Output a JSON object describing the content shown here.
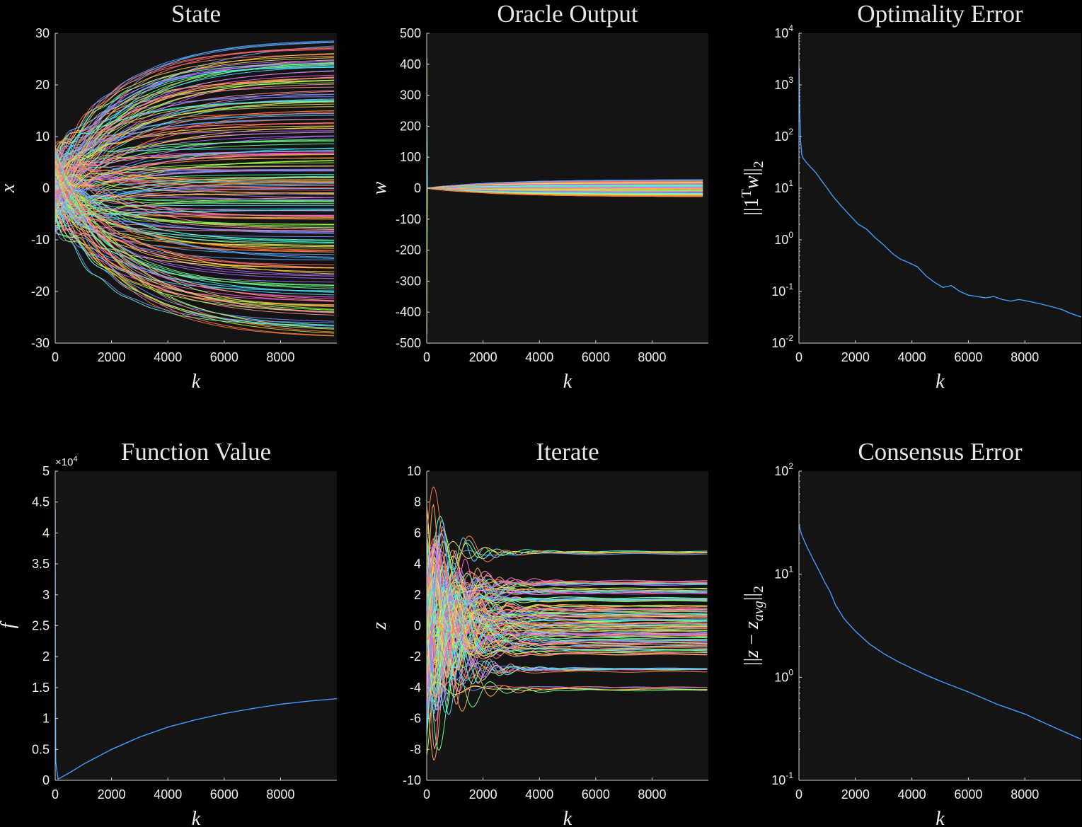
{
  "chart_data": [
    {
      "type": "line",
      "title": "State",
      "xlabel": "k",
      "ylabel": "x",
      "xlim": [
        0,
        9999
      ],
      "ylim": [
        -30,
        30
      ],
      "yscale": "linear",
      "xticks": [
        0,
        2000,
        4000,
        6000,
        8000
      ],
      "xtick_labels": [
        "0",
        "2000",
        "4000",
        "6000",
        "8000"
      ],
      "yticks": [
        -30,
        -20,
        -10,
        0,
        10,
        20,
        30
      ],
      "ytick_labels": [
        "-30",
        "-20",
        "-10",
        "0",
        "10",
        "20",
        "30"
      ],
      "grid": false,
      "description_of_series": "many agents (~200), each diverging from near 0 to a final value between about -28 and 28",
      "series_final_values": [
        28,
        26.5,
        25.5,
        24.5,
        24,
        23.2,
        22,
        21,
        20.3,
        19.5,
        18,
        17,
        16.2,
        15,
        14,
        12.8,
        11.5,
        10.5,
        9,
        7.8,
        7,
        6,
        5,
        4,
        3,
        2.5,
        1.8,
        1,
        0.5,
        -0.3,
        -1,
        -2,
        -3,
        -3.8,
        -5,
        -6,
        -7,
        -8.2,
        -9,
        -10.5,
        -11.5,
        -12.5,
        -13.5,
        -15,
        -16,
        -17.5,
        -19,
        -20,
        -21.5,
        -22.5,
        -23.5,
        -24.5,
        -26,
        -27,
        -27.5,
        -28
      ]
    },
    {
      "type": "line",
      "title": "Oracle Output",
      "xlabel": "k",
      "ylabel": "w",
      "xlim": [
        0,
        9999
      ],
      "ylim": [
        -500,
        500
      ],
      "yscale": "linear",
      "xticks": [
        0,
        2000,
        4000,
        6000,
        8000
      ],
      "xtick_labels": [
        "0",
        "2000",
        "4000",
        "6000",
        "8000"
      ],
      "yticks": [
        -500,
        -400,
        -300,
        -200,
        -100,
        0,
        100,
        200,
        300,
        400,
        500
      ],
      "ytick_labels": [
        "-500",
        "-400",
        "-300",
        "-200",
        "-100",
        "0",
        "100",
        "200",
        "300",
        "400",
        "500"
      ],
      "grid": false,
      "description_of_series": "initial spikes up to about ±420 at k=0, then all series settle in a narrow band around 0",
      "initial_spikes": [
        420,
        350,
        300,
        160,
        -90,
        -250,
        -470
      ],
      "series_final_values": [
        27,
        22,
        18,
        14,
        10,
        6,
        2,
        -2,
        -6,
        -10,
        -14,
        -18,
        -22,
        -26
      ]
    },
    {
      "type": "line",
      "title": "Optimality Error",
      "xlabel": "k",
      "ylabel": "||1^T w||_2",
      "xlim": [
        0,
        9999
      ],
      "ylim": [
        0.01,
        10000
      ],
      "yscale": "log",
      "xticks": [
        0,
        2000,
        4000,
        6000,
        8000
      ],
      "xtick_labels": [
        "0",
        "2000",
        "4000",
        "6000",
        "8000"
      ],
      "ytick_mantissa": [
        "10",
        "10",
        "10",
        "10",
        "10",
        "10",
        "10"
      ],
      "ytick_exponents": [
        "-2",
        "-1",
        "0",
        "1",
        "2",
        "3",
        "4"
      ],
      "grid": false,
      "series": [
        {
          "x": [
            0,
            30,
            60,
            100,
            150,
            250,
            400,
            600,
            800,
            1000,
            1200,
            1500,
            1800,
            2100,
            2400,
            2700,
            3000,
            3300,
            3600,
            3900,
            4200,
            4500,
            4800,
            5100,
            5400,
            5700,
            6000,
            6300,
            6600,
            6900,
            7200,
            7500,
            7800,
            8100,
            8400,
            8700,
            9000,
            9300,
            9600,
            9999
          ],
          "y": [
            2500,
            300,
            80,
            45,
            38,
            32,
            26,
            20,
            14,
            10,
            7,
            4.5,
            3,
            2,
            1.6,
            1.1,
            0.8,
            0.55,
            0.42,
            0.36,
            0.3,
            0.2,
            0.15,
            0.12,
            0.13,
            0.1,
            0.085,
            0.08,
            0.075,
            0.08,
            0.07,
            0.065,
            0.07,
            0.065,
            0.06,
            0.055,
            0.05,
            0.045,
            0.038,
            0.032
          ]
        }
      ]
    },
    {
      "type": "line",
      "title": "Function Value",
      "xlabel": "k",
      "ylabel": "f",
      "xlim": [
        0,
        9999
      ],
      "ylim": [
        0,
        50000
      ],
      "yscale": "linear",
      "y_multiplier": "×10",
      "y_multiplier_exponent": "4",
      "xticks": [
        0,
        2000,
        4000,
        6000,
        8000
      ],
      "xtick_labels": [
        "0",
        "2000",
        "4000",
        "6000",
        "8000"
      ],
      "yticks": [
        0,
        5000,
        10000,
        15000,
        20000,
        25000,
        30000,
        35000,
        40000,
        45000,
        50000
      ],
      "ytick_labels": [
        "0",
        "0.5",
        "1",
        "1.5",
        "2",
        "2.5",
        "3",
        "3.5",
        "4",
        "4.5",
        "5"
      ],
      "grid": false,
      "series": [
        {
          "x": [
            0,
            5,
            20,
            100,
            500,
            1000,
            2000,
            3000,
            4000,
            5000,
            6000,
            7000,
            8000,
            9000,
            9999
          ],
          "y": [
            44000,
            20000,
            3000,
            200,
            1200,
            2600,
            5000,
            7000,
            8600,
            9800,
            10800,
            11600,
            12300,
            12800,
            13200
          ]
        }
      ]
    },
    {
      "type": "line",
      "title": "Iterate",
      "xlabel": "k",
      "ylabel": "z",
      "xlim": [
        0,
        9999
      ],
      "ylim": [
        -10,
        10
      ],
      "yscale": "linear",
      "xticks": [
        0,
        2000,
        4000,
        6000,
        8000
      ],
      "xtick_labels": [
        "0",
        "2000",
        "4000",
        "6000",
        "8000"
      ],
      "yticks": [
        -10,
        -8,
        -6,
        -4,
        -2,
        0,
        2,
        4,
        6,
        8,
        10
      ],
      "ytick_labels": [
        "-10",
        "-8",
        "-6",
        "-4",
        "-2",
        "0",
        "2",
        "4",
        "6",
        "8",
        "10"
      ],
      "grid": false,
      "description_of_series": "many agents start spread between about -8.6 and 8.6, oscillate, and settle to constant values",
      "series_final_values": [
        4.7,
        2.8,
        2.7,
        2.3,
        2.2,
        1.7,
        1.6,
        1.2,
        1.0,
        0.7,
        0.5,
        0.3,
        0.1,
        -0.1,
        -0.3,
        -0.5,
        -0.7,
        -0.9,
        -1.1,
        -1.3,
        -1.5,
        -1.8,
        -2.9,
        -2.8,
        -4.1
      ]
    },
    {
      "type": "line",
      "title": "Consensus Error",
      "xlabel": "k",
      "ylabel": "||z - z_avg||_2",
      "xlim": [
        0,
        9999
      ],
      "ylim": [
        0.1,
        100
      ],
      "yscale": "log",
      "xticks": [
        0,
        2000,
        4000,
        6000,
        8000
      ],
      "xtick_labels": [
        "0",
        "2000",
        "4000",
        "6000",
        "8000"
      ],
      "ytick_mantissa": [
        "10",
        "10",
        "10",
        "10"
      ],
      "ytick_exponents": [
        "-1",
        "0",
        "1",
        "2"
      ],
      "grid": false,
      "series": [
        {
          "x": [
            0,
            100,
            300,
            500,
            700,
            900,
            1100,
            1300,
            1600,
            2000,
            2500,
            3000,
            3500,
            4000,
            4500,
            5000,
            6000,
            7000,
            8000,
            9000,
            9999
          ],
          "y": [
            30,
            24,
            18,
            14,
            11,
            8.5,
            6.8,
            5,
            3.7,
            2.8,
            2.1,
            1.7,
            1.42,
            1.22,
            1.05,
            0.92,
            0.72,
            0.55,
            0.44,
            0.33,
            0.25
          ]
        }
      ]
    }
  ]
}
